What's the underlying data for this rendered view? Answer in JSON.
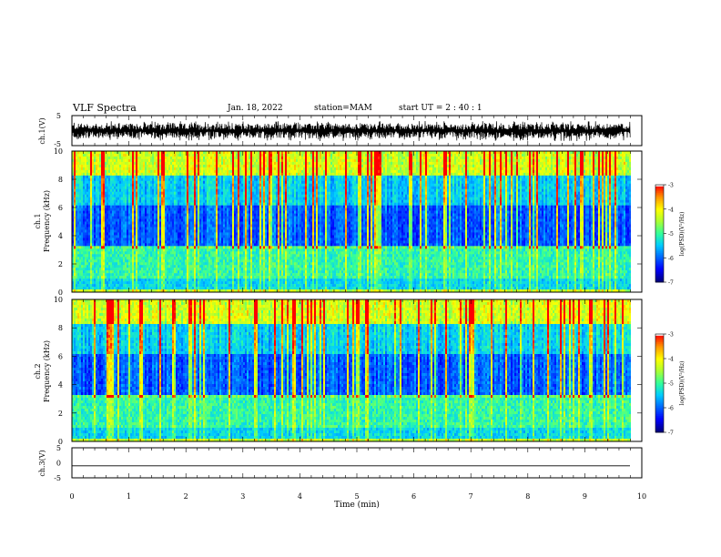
{
  "header": {
    "title": "VLF Spectra",
    "date": "Jan. 18, 2022",
    "station": "station=MAM",
    "start": "start UT =  2 : 40 : 1"
  },
  "chart_data": [
    {
      "type": "line",
      "panel": "ch1-waveform",
      "ylabel": "ch.1(V)",
      "ylim": [
        -5,
        5
      ],
      "yticks": [
        "5",
        "-5"
      ],
      "x_range": [
        0,
        9.8
      ],
      "description_values": {
        "amplitude_min_V": -3.5,
        "amplitude_max_V": 3.2
      }
    },
    {
      "type": "heatmap",
      "panel": "ch1-spectrogram",
      "ylabel": "ch.1\nFrequency (kHz)",
      "ylim": [
        0,
        10
      ],
      "yticks": [
        "0",
        "2",
        "4",
        "6",
        "8",
        "10"
      ],
      "colorbar": {
        "label": "log(PSD)(V²/Hz)",
        "range": [
          -7,
          -3
        ],
        "ticks": [
          "-3",
          "-4",
          "-5",
          "-6",
          "-7"
        ]
      }
    },
    {
      "type": "heatmap",
      "panel": "ch2-spectrogram",
      "ylabel": "ch.2\nFrequency (kHz)",
      "ylim": [
        0,
        10
      ],
      "yticks": [
        "0",
        "2",
        "4",
        "6",
        "8",
        "10"
      ],
      "colorbar": {
        "label": "log(PSD)(V²/Hz)",
        "range": [
          -7,
          -3
        ],
        "ticks": [
          "-3",
          "-4",
          "-5",
          "-6",
          "-7"
        ]
      }
    },
    {
      "type": "line",
      "panel": "ch3-waveform",
      "ylabel": "ch.3(V)",
      "ylim": [
        -5,
        5
      ],
      "yticks": [
        "5",
        "0",
        "-5"
      ],
      "series": [
        {
          "values": [
            -1,
            -1
          ]
        }
      ]
    }
  ],
  "xaxis": {
    "xlabel": "Time (min)",
    "xlim": [
      0,
      10
    ],
    "ticks": [
      "0",
      "1",
      "2",
      "3",
      "4",
      "5",
      "6",
      "7",
      "8",
      "9",
      "10"
    ]
  },
  "colors": {
    "colormap": [
      "#00007f",
      "#0000ff",
      "#0066ff",
      "#00ccff",
      "#33ff99",
      "#aaff33",
      "#ffff00",
      "#ff9900",
      "#ff0000",
      "#ffffff"
    ]
  }
}
